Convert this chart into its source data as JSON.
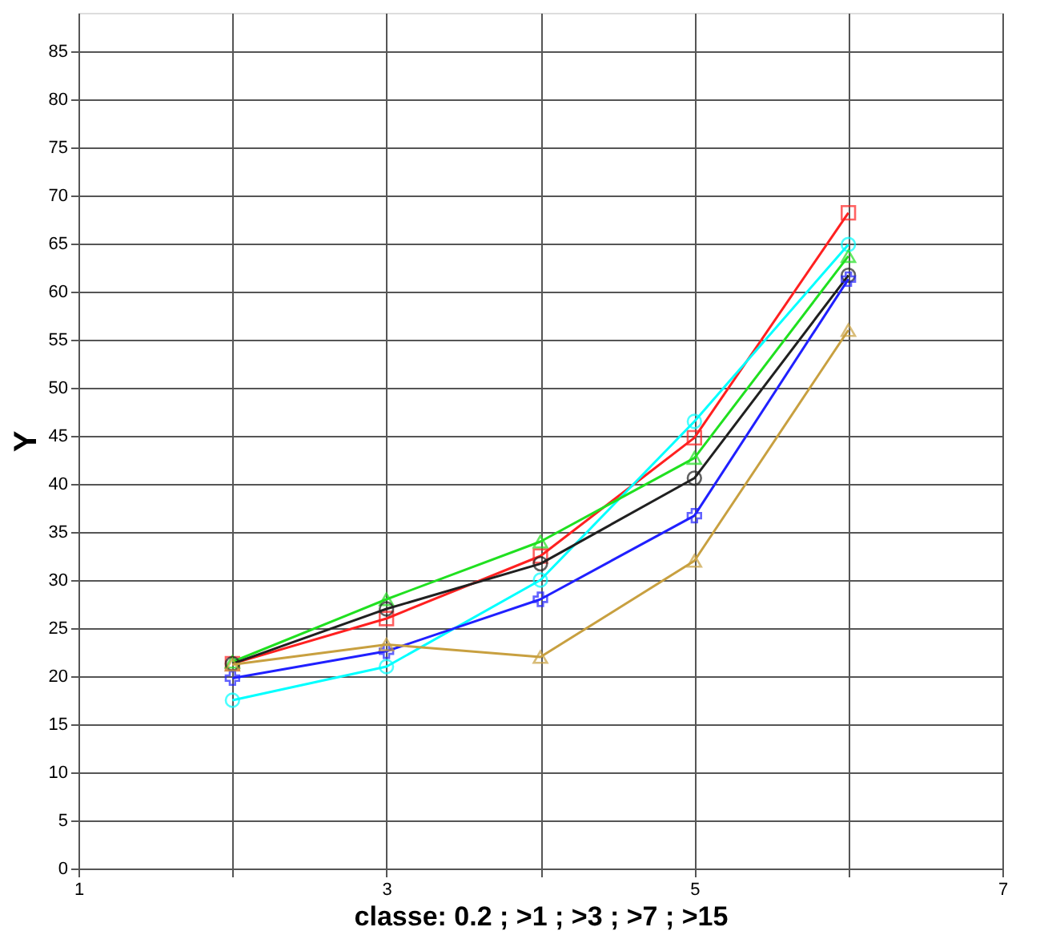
{
  "chart_data": {
    "type": "line",
    "xlabel": "classe:  0.2 ;  >1  ;  >3  ; >7 ; >15",
    "ylabel": "Y",
    "x": [
      2,
      3,
      4,
      5,
      6
    ],
    "xlim": [
      1,
      7
    ],
    "xticks": [
      1,
      {
        "value": 2,
        "label": null
      },
      3,
      {
        "value": 4,
        "label": null
      },
      5,
      {
        "value": 6,
        "label": null
      },
      7
    ],
    "ylim": [
      0,
      89
    ],
    "yticks": [
      0,
      5,
      10,
      15,
      20,
      25,
      30,
      35,
      40,
      45,
      50,
      55,
      60,
      65,
      70,
      75,
      80,
      85
    ],
    "grid": true,
    "legend": false,
    "line_style": "solid",
    "series": [
      {
        "color": "#ff2020",
        "marker": "square",
        "values": [
          21.3,
          26,
          32.5,
          44.8,
          68.2
        ]
      },
      {
        "color": "#00ffff",
        "marker": "circle",
        "values": [
          17.5,
          21,
          30,
          46.5,
          64.9
        ]
      },
      {
        "color": "#20e020",
        "marker": "triangle",
        "values": [
          21.5,
          28,
          34,
          42.7,
          63.7
        ]
      },
      {
        "color": "#202020",
        "marker": "circle",
        "values": [
          21.3,
          27,
          31.7,
          40.6,
          61.7
        ]
      },
      {
        "color": "#2020ff",
        "marker": "cross",
        "values": [
          19.8,
          22.6,
          28,
          36.7,
          61.3
        ]
      },
      {
        "color": "#c8a040",
        "marker": "triangle",
        "values": [
          21.2,
          23.3,
          22,
          32,
          56
        ]
      }
    ]
  }
}
